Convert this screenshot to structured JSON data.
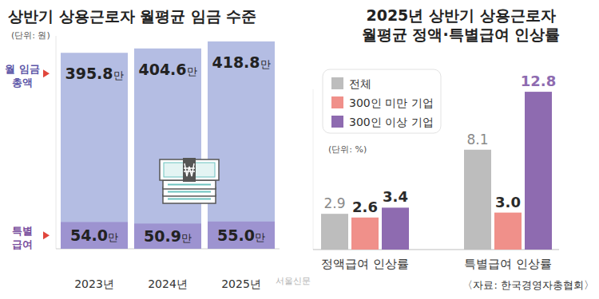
{
  "chart_data": [
    {
      "type": "bar",
      "title": "상반기 상용근로자 월평균 임금 수준",
      "subtitle": "(단위: 원)",
      "categories": [
        "2023년",
        "2024년",
        "2025년"
      ],
      "series": [
        {
          "name": "월 임금\n총액",
          "color": "#b4bde3",
          "values": [
            3958000,
            4046000,
            4188000
          ],
          "value_labels": [
            "395.8만",
            "404.6만",
            "418.8만"
          ]
        },
        {
          "name": "특별\n급여",
          "color": "#9d93d0",
          "values": [
            540000,
            509000,
            550000
          ],
          "value_labels": [
            "54.0만",
            "50.9만",
            "55.0만"
          ]
        }
      ],
      "ylim": [
        0,
        4300000
      ],
      "data_labels": true,
      "tick_labels": "x"
    },
    {
      "type": "bar",
      "title": "2025년 상반기 상용근로자\n월평균 정액·특별급여 인상률",
      "subtitle": "(단위: %)",
      "categories": [
        "정액급여 인상률",
        "특별급여 인상률"
      ],
      "series": [
        {
          "name": "전체",
          "color": "#bdbdbd",
          "values": [
            2.9,
            8.1
          ]
        },
        {
          "name": "300인 미만 기업",
          "color": "#f0908a",
          "values": [
            2.6,
            3.0
          ],
          "value_labels": [
            "2.6",
            "3.0"
          ]
        },
        {
          "name": "300인 이상 기업",
          "color": "#8e6bb0",
          "values": [
            3.4,
            12.8
          ]
        }
      ],
      "ylim": [
        0,
        13
      ],
      "legend": "top-left",
      "data_labels": true,
      "tick_labels": "x",
      "annotations": [
        "〈자료: 한국경영자총협회〉",
        "서울신문"
      ]
    }
  ]
}
